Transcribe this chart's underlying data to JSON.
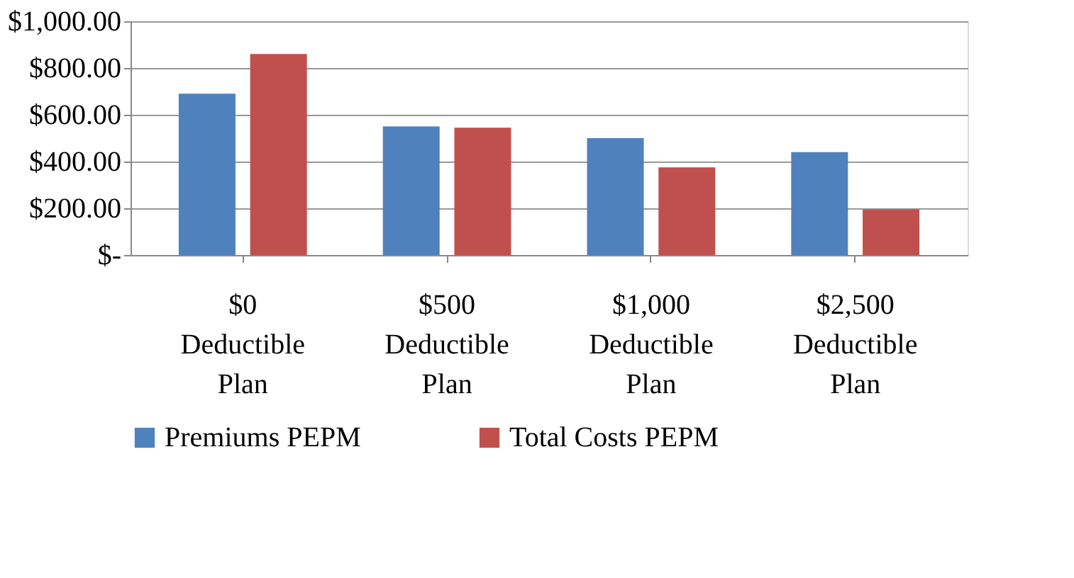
{
  "chart_data": {
    "type": "bar",
    "categories": [
      "$0 Deductible Plan",
      "$500 Deductible Plan",
      "$1,000 Deductible Plan",
      "$2,500 Deductible Plan"
    ],
    "series": [
      {
        "name": "Premiums PEPM",
        "color": "#4f81bd",
        "values": [
          690,
          550,
          500,
          440
        ]
      },
      {
        "name": "Total Costs PEPM",
        "color": "#c0504d",
        "values": [
          860,
          545,
          375,
          195
        ]
      }
    ],
    "ylim": [
      0,
      1000
    ],
    "yticks": [
      {
        "value": 0,
        "label": "$-"
      },
      {
        "value": 200,
        "label": "$200.00"
      },
      {
        "value": 400,
        "label": "$400.00"
      },
      {
        "value": 600,
        "label": "$600.00"
      },
      {
        "value": 800,
        "label": "$800.00"
      },
      {
        "value": 1000,
        "label": "$1,000.00"
      }
    ],
    "grid": "y",
    "legend": "bottom"
  }
}
